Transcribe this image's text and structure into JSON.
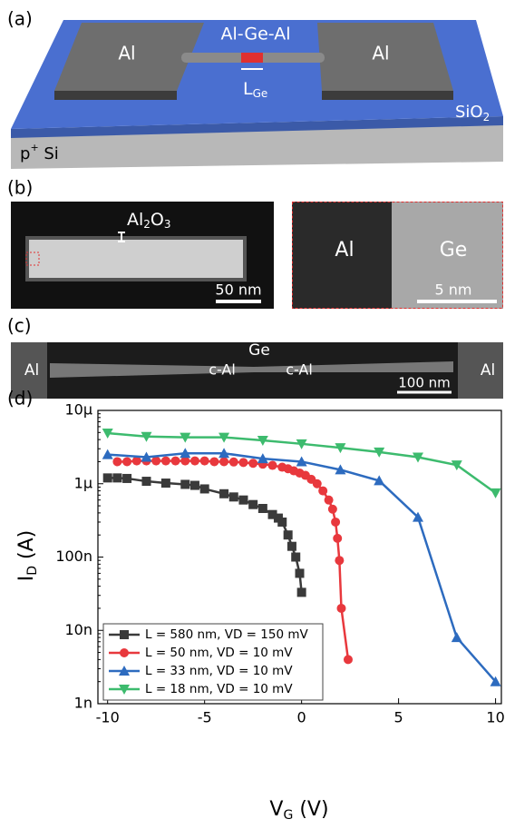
{
  "panel_a": {
    "label": "(a)",
    "pad_left": "Al",
    "pad_right": "Al",
    "wire": "Al-Ge-Al",
    "length": {
      "main": "L",
      "sub": "Ge"
    },
    "oxide": {
      "main": "SiO",
      "sub": "2"
    },
    "substrate": {
      "main": "p",
      "sup": "+",
      "rest": " Si"
    }
  },
  "panel_b": {
    "label": "(b)",
    "shell": {
      "a": "Al",
      "s1": "2",
      "b": "O",
      "s2": "3"
    },
    "scale_left": "50 nm",
    "zoom_left": "Al",
    "zoom_right": "Ge",
    "scale_right": "5 nm"
  },
  "panel_c": {
    "label": "(c)",
    "left": "Al",
    "center": "Ge",
    "c1": "c-Al",
    "c2": "c-Al",
    "scale": "100 nm",
    "right": "Al"
  },
  "panel_d": {
    "label": "(d)"
  },
  "chart_data": {
    "type": "line",
    "yscale": "log",
    "legend": "lower left",
    "xlabel": {
      "main": "V",
      "sub": "G",
      "unit": " (V)"
    },
    "ylabel": {
      "main": "I",
      "sub": "D",
      "unit": " (A)"
    },
    "xlim": [
      -10.5,
      10.3
    ],
    "xticks": [
      -10,
      -5,
      0,
      5,
      10
    ],
    "ylim": [
      1e-09,
      1e-05
    ],
    "yticks": [
      {
        "value": 1e-09,
        "label": "1n"
      },
      {
        "value": 1e-08,
        "label": "10n"
      },
      {
        "value": 1e-07,
        "label": "100n"
      },
      {
        "value": 1e-06,
        "label": "1µ"
      },
      {
        "value": 1e-05,
        "label": "10µ"
      }
    ],
    "series": [
      {
        "name": "L = 580 nm, VD = 150 mV",
        "color": "#3a3a3a",
        "marker": "square",
        "x": [
          -10,
          -9.5,
          -9,
          -8,
          -7,
          -6,
          -5.5,
          -5,
          -4,
          -3.5,
          -3,
          -2.5,
          -2,
          -1.5,
          -1.2,
          -1,
          -0.7,
          -0.5,
          -0.3,
          -0.1,
          0
        ],
        "values": [
          1.2e-06,
          1.2e-06,
          1.18e-06,
          1.08e-06,
          1.02e-06,
          9.8e-07,
          9.5e-07,
          8.5e-07,
          7.3e-07,
          6.6e-07,
          6e-07,
          5.2e-07,
          4.6e-07,
          3.8e-07,
          3.4e-07,
          3e-07,
          2e-07,
          1.4e-07,
          1e-07,
          6e-08,
          3.3e-08
        ]
      },
      {
        "name": "L = 50 nm, VD = 10 mV",
        "color": "#e8383d",
        "marker": "circle",
        "x": [
          -9.5,
          -9,
          -8.5,
          -8,
          -7.5,
          -7,
          -6.5,
          -6,
          -5.5,
          -5,
          -4.5,
          -4,
          -3.5,
          -3,
          -2.5,
          -2,
          -1.5,
          -1,
          -0.7,
          -0.4,
          -0.1,
          0.2,
          0.5,
          0.8,
          1.1,
          1.4,
          1.6,
          1.75,
          1.85,
          1.95,
          2.05,
          2.4
        ],
        "values": [
          2e-06,
          2e-06,
          2.05e-06,
          2.05e-06,
          2.05e-06,
          2.05e-06,
          2.05e-06,
          2.05e-06,
          2.05e-06,
          2.05e-06,
          2e-06,
          2e-06,
          1.98e-06,
          1.95e-06,
          1.9e-06,
          1.85e-06,
          1.78e-06,
          1.68e-06,
          1.6e-06,
          1.5e-06,
          1.4e-06,
          1.3e-06,
          1.15e-06,
          1e-06,
          8e-07,
          6e-07,
          4.5e-07,
          3e-07,
          1.8e-07,
          9e-08,
          2e-08,
          4e-09
        ]
      },
      {
        "name": "L = 33 nm, VD = 10 mV",
        "color": "#2d6bbf",
        "marker": "triangle-up",
        "x": [
          -10,
          -8,
          -6,
          -4,
          -2,
          0,
          2,
          4,
          6,
          8,
          10
        ],
        "values": [
          2.5e-06,
          2.3e-06,
          2.6e-06,
          2.6e-06,
          2.2e-06,
          2e-06,
          1.55e-06,
          1.1e-06,
          3.5e-07,
          8e-09,
          2e-09
        ]
      },
      {
        "name": "L = 18 nm, VD = 10 mV",
        "color": "#3dbb6e",
        "marker": "triangle-down",
        "x": [
          -10,
          -8,
          -6,
          -4,
          -2,
          0,
          2,
          4,
          6,
          8,
          10
        ],
        "values": [
          4.9e-06,
          4.4e-06,
          4.3e-06,
          4.3e-06,
          3.9e-06,
          3.5e-06,
          3.1e-06,
          2.7e-06,
          2.3e-06,
          1.8e-06,
          7.5e-07
        ]
      }
    ]
  }
}
